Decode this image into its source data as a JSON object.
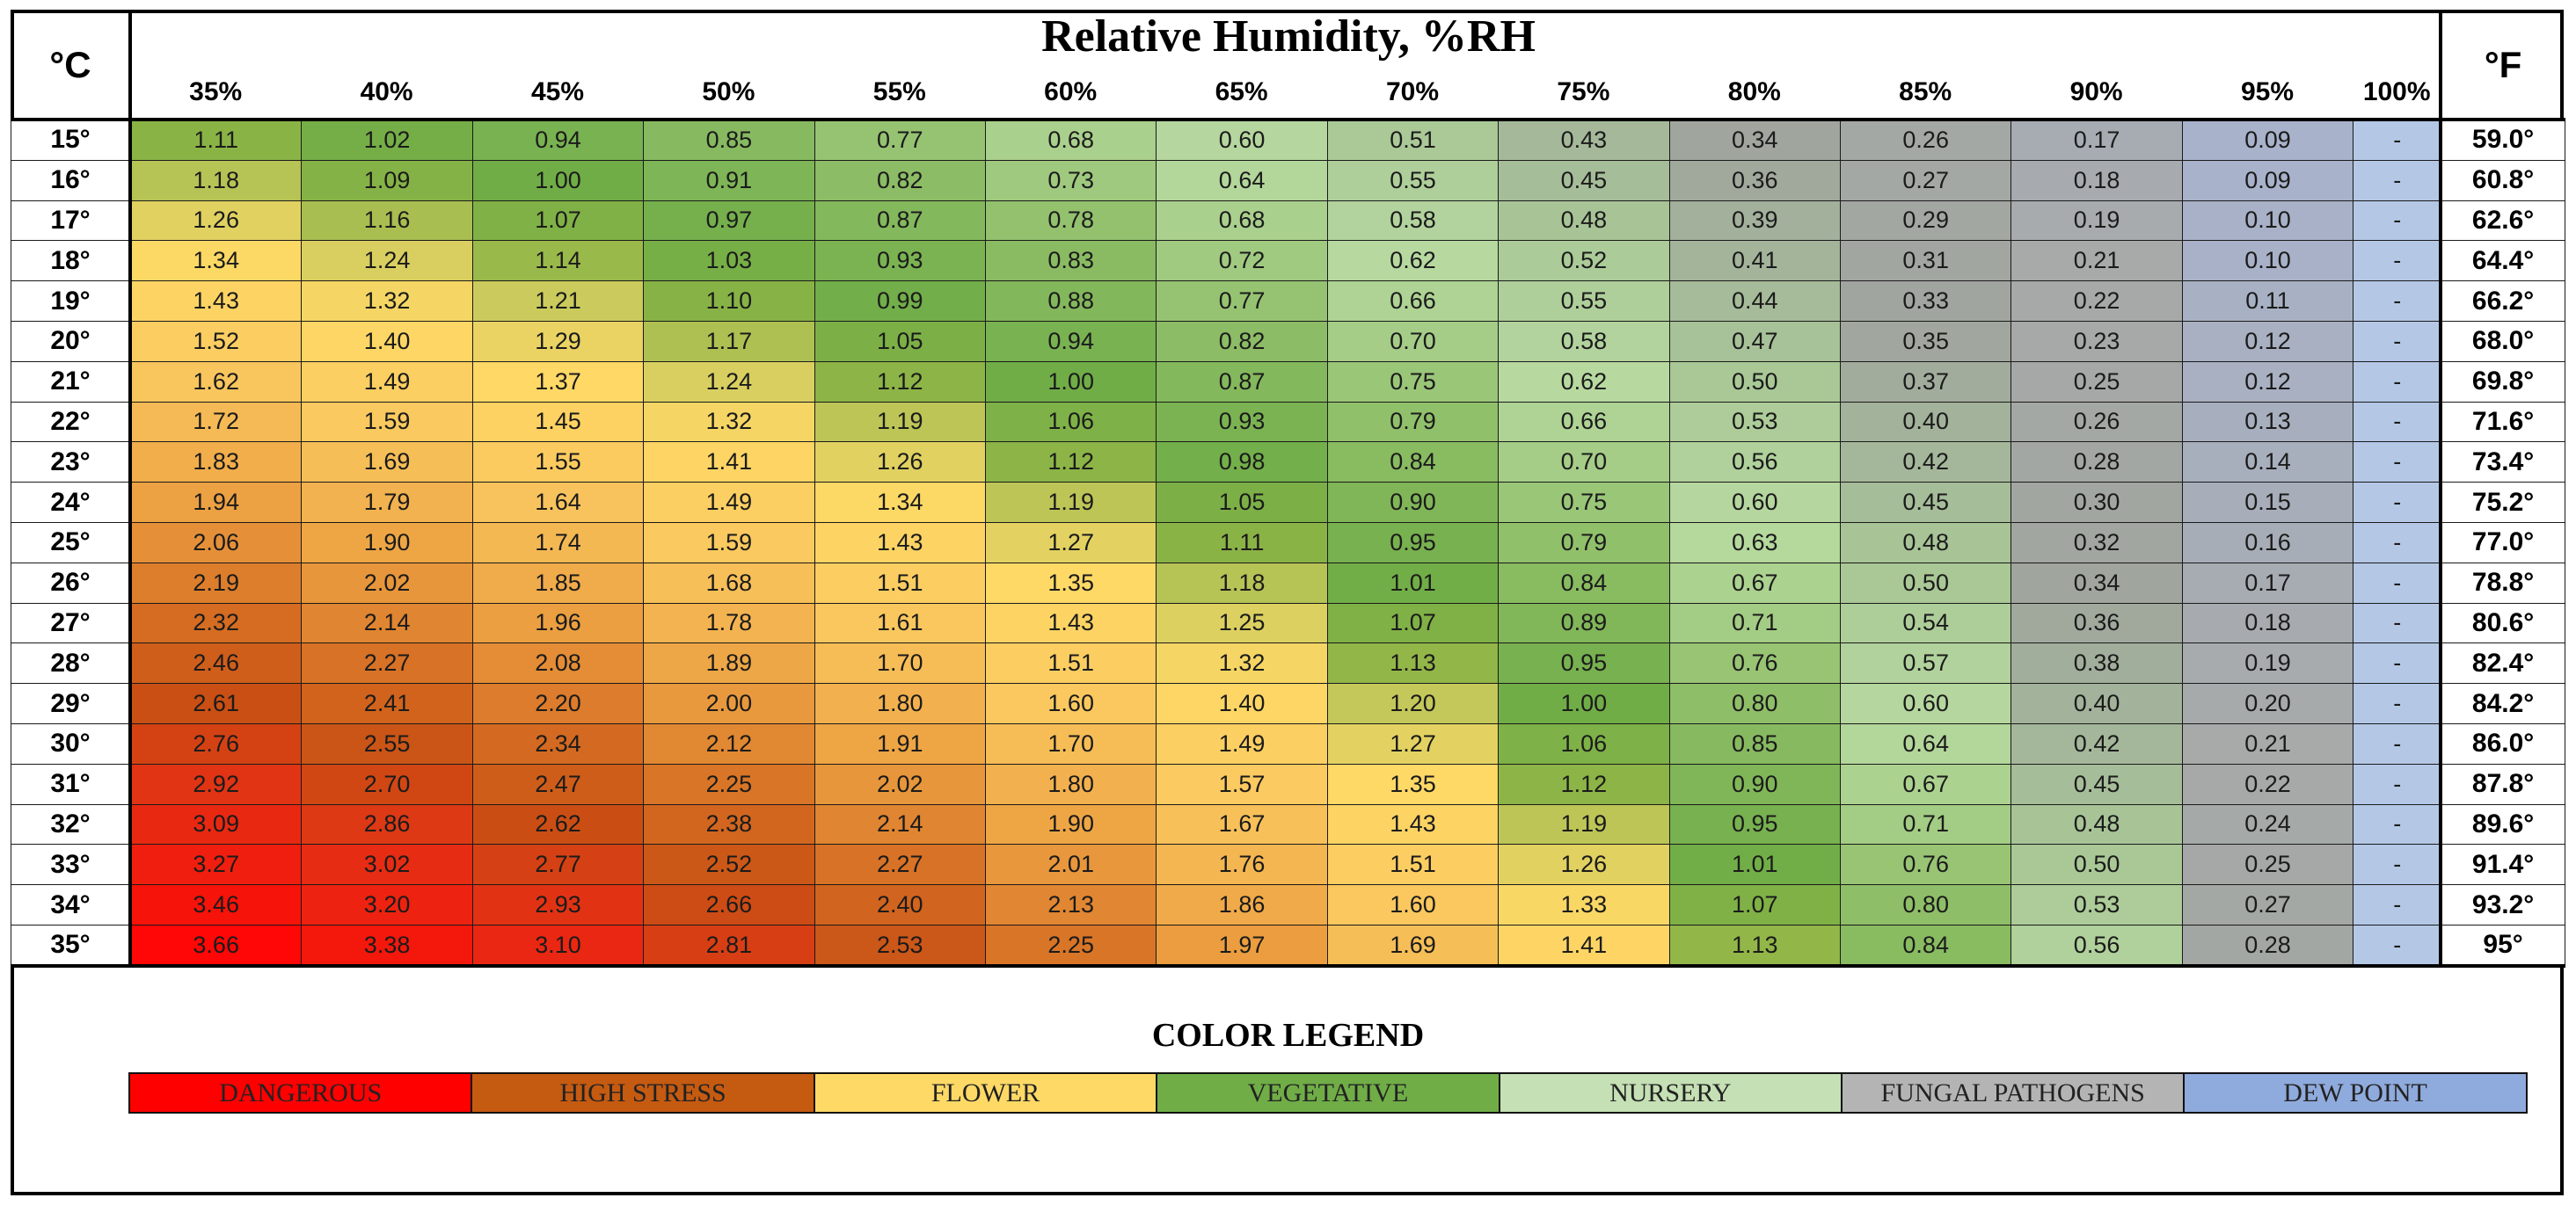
{
  "chart_data": {
    "type": "table",
    "title": "Relative Humidity, %RH",
    "left_unit": "°C",
    "right_unit": "°F",
    "columns": [
      "35%",
      "40%",
      "45%",
      "50%",
      "55%",
      "60%",
      "65%",
      "70%",
      "75%",
      "80%",
      "85%",
      "90%",
      "95%",
      "100%"
    ],
    "rows_c": [
      "15°",
      "16°",
      "17°",
      "18°",
      "19°",
      "20°",
      "21°",
      "22°",
      "23°",
      "24°",
      "25°",
      "26°",
      "27°",
      "28°",
      "29°",
      "30°",
      "31°",
      "32°",
      "33°",
      "34°",
      "35°"
    ],
    "rows_f": [
      "59.0°",
      "60.8°",
      "62.6°",
      "64.4°",
      "66.2°",
      "68.0°",
      "69.8°",
      "71.6°",
      "73.4°",
      "75.2°",
      "77.0°",
      "78.8°",
      "80.6°",
      "82.4°",
      "84.2°",
      "86.0°",
      "87.8°",
      "89.6°",
      "91.4°",
      "93.2°",
      "95°"
    ],
    "values": [
      [
        "1.11",
        "1.02",
        "0.94",
        "0.85",
        "0.77",
        "0.68",
        "0.60",
        "0.51",
        "0.43",
        "0.34",
        "0.26",
        "0.17",
        "0.09",
        "-"
      ],
      [
        "1.18",
        "1.09",
        "1.00",
        "0.91",
        "0.82",
        "0.73",
        "0.64",
        "0.55",
        "0.45",
        "0.36",
        "0.27",
        "0.18",
        "0.09",
        "-"
      ],
      [
        "1.26",
        "1.16",
        "1.07",
        "0.97",
        "0.87",
        "0.78",
        "0.68",
        "0.58",
        "0.48",
        "0.39",
        "0.29",
        "0.19",
        "0.10",
        "-"
      ],
      [
        "1.34",
        "1.24",
        "1.14",
        "1.03",
        "0.93",
        "0.83",
        "0.72",
        "0.62",
        "0.52",
        "0.41",
        "0.31",
        "0.21",
        "0.10",
        "-"
      ],
      [
        "1.43",
        "1.32",
        "1.21",
        "1.10",
        "0.99",
        "0.88",
        "0.77",
        "0.66",
        "0.55",
        "0.44",
        "0.33",
        "0.22",
        "0.11",
        "-"
      ],
      [
        "1.52",
        "1.40",
        "1.29",
        "1.17",
        "1.05",
        "0.94",
        "0.82",
        "0.70",
        "0.58",
        "0.47",
        "0.35",
        "0.23",
        "0.12",
        "-"
      ],
      [
        "1.62",
        "1.49",
        "1.37",
        "1.24",
        "1.12",
        "1.00",
        "0.87",
        "0.75",
        "0.62",
        "0.50",
        "0.37",
        "0.25",
        "0.12",
        "-"
      ],
      [
        "1.72",
        "1.59",
        "1.45",
        "1.32",
        "1.19",
        "1.06",
        "0.93",
        "0.79",
        "0.66",
        "0.53",
        "0.40",
        "0.26",
        "0.13",
        "-"
      ],
      [
        "1.83",
        "1.69",
        "1.55",
        "1.41",
        "1.26",
        "1.12",
        "0.98",
        "0.84",
        "0.70",
        "0.56",
        "0.42",
        "0.28",
        "0.14",
        "-"
      ],
      [
        "1.94",
        "1.79",
        "1.64",
        "1.49",
        "1.34",
        "1.19",
        "1.05",
        "0.90",
        "0.75",
        "0.60",
        "0.45",
        "0.30",
        "0.15",
        "-"
      ],
      [
        "2.06",
        "1.90",
        "1.74",
        "1.59",
        "1.43",
        "1.27",
        "1.11",
        "0.95",
        "0.79",
        "0.63",
        "0.48",
        "0.32",
        "0.16",
        "-"
      ],
      [
        "2.19",
        "2.02",
        "1.85",
        "1.68",
        "1.51",
        "1.35",
        "1.18",
        "1.01",
        "0.84",
        "0.67",
        "0.50",
        "0.34",
        "0.17",
        "-"
      ],
      [
        "2.32",
        "2.14",
        "1.96",
        "1.78",
        "1.61",
        "1.43",
        "1.25",
        "1.07",
        "0.89",
        "0.71",
        "0.54",
        "0.36",
        "0.18",
        "-"
      ],
      [
        "2.46",
        "2.27",
        "2.08",
        "1.89",
        "1.70",
        "1.51",
        "1.32",
        "1.13",
        "0.95",
        "0.76",
        "0.57",
        "0.38",
        "0.19",
        "-"
      ],
      [
        "2.61",
        "2.41",
        "2.20",
        "2.00",
        "1.80",
        "1.60",
        "1.40",
        "1.20",
        "1.00",
        "0.80",
        "0.60",
        "0.40",
        "0.20",
        "-"
      ],
      [
        "2.76",
        "2.55",
        "2.34",
        "2.12",
        "1.91",
        "1.70",
        "1.49",
        "1.27",
        "1.06",
        "0.85",
        "0.64",
        "0.42",
        "0.21",
        "-"
      ],
      [
        "2.92",
        "2.70",
        "2.47",
        "2.25",
        "2.02",
        "1.80",
        "1.57",
        "1.35",
        "1.12",
        "0.90",
        "0.67",
        "0.45",
        "0.22",
        "-"
      ],
      [
        "3.09",
        "2.86",
        "2.62",
        "2.38",
        "2.14",
        "1.90",
        "1.67",
        "1.43",
        "1.19",
        "0.95",
        "0.71",
        "0.48",
        "0.24",
        "-"
      ],
      [
        "3.27",
        "3.02",
        "2.77",
        "2.52",
        "2.27",
        "2.01",
        "1.76",
        "1.51",
        "1.26",
        "1.01",
        "0.76",
        "0.50",
        "0.25",
        "-"
      ],
      [
        "3.46",
        "3.20",
        "2.93",
        "2.66",
        "2.40",
        "2.13",
        "1.86",
        "1.60",
        "1.33",
        "1.07",
        "0.80",
        "0.53",
        "0.27",
        "-"
      ],
      [
        "3.66",
        "3.38",
        "3.10",
        "2.81",
        "2.53",
        "2.25",
        "1.97",
        "1.69",
        "1.41",
        "1.13",
        "0.84",
        "0.56",
        "0.28",
        "-"
      ]
    ],
    "legend_title": "COLOR LEGEND",
    "legend": [
      {
        "label": "DANGEROUS",
        "color": "#ff0000"
      },
      {
        "label": "HIGH STRESS",
        "color": "#c55a11"
      },
      {
        "label": "FLOWER",
        "color": "#ffd966"
      },
      {
        "label": "VEGETATIVE",
        "color": "#70ad47"
      },
      {
        "label": "NURSERY",
        "color": "#c5e0b4"
      },
      {
        "label": "FUNGAL PATHOGENS",
        "color": "#b4b4b4"
      },
      {
        "label": "DEW POINT",
        "color": "#8faadc"
      }
    ]
  }
}
